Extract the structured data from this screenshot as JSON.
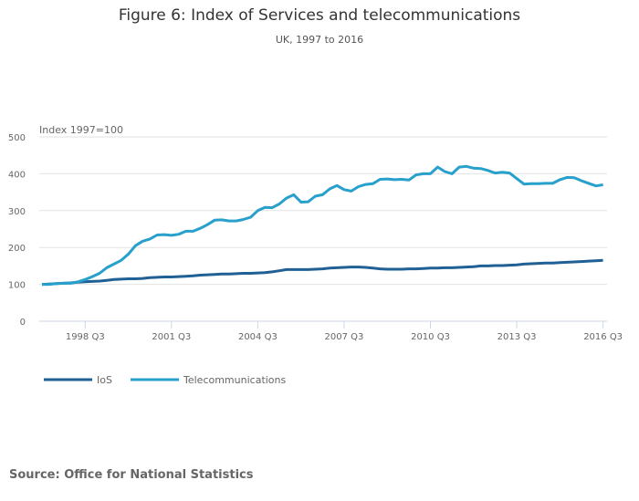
{
  "title": "Figure 6: Index of Services and telecommunications",
  "subtitle": "UK, 1997 to 2016",
  "source": "Source: Office for National Statistics",
  "chart_data": {
    "type": "line",
    "ylabel": "Index 1997=100",
    "ylim": [
      0,
      500
    ],
    "yticks": [
      "0",
      "100",
      "200",
      "300",
      "400",
      "500"
    ],
    "xtick_labels": [
      "1998 Q3",
      "2001 Q3",
      "2004 Q3",
      "2007 Q3",
      "2010 Q3",
      "2013 Q3",
      "2016 Q3"
    ],
    "x_range": [
      "1997 Q1",
      "2016 Q3"
    ],
    "grid": "horizontal",
    "legend_position": "bottom-left",
    "series": [
      {
        "name": "IoS",
        "color": "#206095",
        "values": [
          100,
          101,
          102,
          103,
          104,
          106,
          107,
          108,
          109,
          111,
          113,
          114,
          115,
          115,
          116,
          118,
          119,
          120,
          120,
          121,
          122,
          123,
          125,
          126,
          127,
          128,
          128,
          129,
          130,
          130,
          131,
          132,
          134,
          137,
          140,
          140,
          140,
          140,
          141,
          142,
          144,
          145,
          146,
          147,
          147,
          146,
          144,
          142,
          141,
          141,
          141,
          142,
          142,
          143,
          144,
          144,
          145,
          145,
          146,
          147,
          148,
          150,
          150,
          151,
          151,
          152,
          153,
          155,
          156,
          157,
          158,
          158,
          159,
          160,
          161,
          162,
          163,
          164,
          165
        ]
      },
      {
        "name": "Telecommunications",
        "color": "#27a0cc",
        "values": [
          100,
          100,
          102,
          103,
          103,
          107,
          113,
          121,
          130,
          145,
          155,
          165,
          182,
          205,
          217,
          223,
          234,
          235,
          233,
          236,
          244,
          244,
          252,
          262,
          274,
          275,
          272,
          272,
          276,
          282,
          300,
          309,
          308,
          318,
          334,
          343,
          323,
          324,
          339,
          343,
          359,
          368,
          357,
          353,
          365,
          371,
          373,
          385,
          386,
          384,
          385,
          383,
          397,
          400,
          400,
          418,
          406,
          400,
          418,
          420,
          415,
          414,
          409,
          402,
          404,
          402,
          387,
          372,
          373,
          373,
          374,
          374,
          384,
          390,
          389,
          381,
          374,
          367,
          370
        ]
      }
    ]
  }
}
